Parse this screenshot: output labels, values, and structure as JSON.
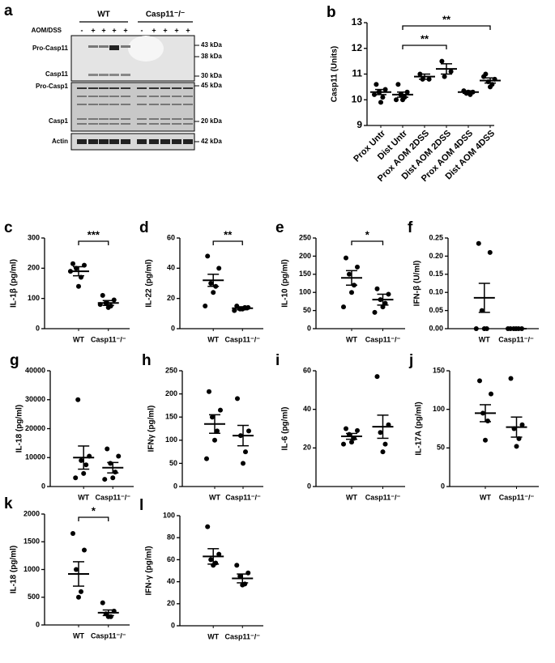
{
  "blot": {
    "panel": "a",
    "groups": [
      "WT",
      "Casp11⁻/⁻"
    ],
    "treatment": "AOM/DSS",
    "lanes": [
      "-",
      "+",
      "+",
      "+",
      "+",
      "-",
      "+",
      "+",
      "+",
      "+"
    ],
    "rows": [
      "Pro-Casp11",
      "Casp11",
      "Pro-Casp1",
      "Casp1",
      "Actin"
    ],
    "markers": [
      "43 kDa",
      "38 kDa",
      "30 kDa",
      "45 kDa",
      "20 kDa",
      "42 kDa"
    ]
  },
  "chart_data": [
    {
      "type": "dot",
      "panel": "b",
      "y_label": "Casp11 (Units)",
      "categories": [
        "Prox Untr",
        "Dist Untr",
        "Prox AOM 2DSS",
        "Dist AOM 2DSS",
        "Prox AOM 4DSS",
        "Dist AOM 4DSS"
      ],
      "points": [
        [
          10.6,
          10.4,
          10.3,
          10.1,
          9.9,
          10.2
        ],
        [
          10.6,
          10.3,
          10.2,
          10.1,
          10.0,
          10.0
        ],
        [
          11.0,
          10.8,
          10.8
        ],
        [
          11.5,
          11.1,
          10.9
        ],
        [
          10.35,
          10.3,
          10.25,
          10.2,
          10.3
        ],
        [
          11.0,
          10.8,
          10.7,
          10.6,
          10.5,
          10.9
        ]
      ],
      "means": [
        10.3,
        10.2,
        10.9,
        11.2,
        10.3,
        10.75
      ],
      "sems": [
        0.1,
        0.1,
        0.1,
        0.2,
        0.05,
        0.1
      ],
      "ylim": [
        9,
        13
      ],
      "yticks": [
        9,
        10,
        11,
        12,
        13
      ],
      "significance": [
        {
          "groups": [
            1,
            3
          ],
          "label": "**"
        },
        {
          "groups": [
            1,
            5
          ],
          "label": "**"
        }
      ]
    },
    {
      "type": "dot",
      "panel": "c",
      "y_label": "IL-1β (pg/ml)",
      "categories": [
        "WT",
        "Casp11⁻/⁻"
      ],
      "points": [
        [
          215,
          210,
          200,
          170,
          140,
          190
        ],
        [
          110,
          95,
          85,
          75,
          70,
          80
        ]
      ],
      "means": [
        190,
        85
      ],
      "sems": [
        15,
        8
      ],
      "ylim": [
        0,
        300
      ],
      "yticks": [
        0,
        100,
        200,
        300
      ],
      "significance": [
        {
          "groups": [
            0,
            1
          ],
          "label": "***"
        }
      ]
    },
    {
      "type": "dot",
      "panel": "d",
      "y_label": "IL-22 (pg/ml)",
      "categories": [
        "WT",
        "Casp11⁻/⁻"
      ],
      "points": [
        [
          48,
          40,
          30,
          28,
          24,
          15
        ],
        [
          15,
          14,
          13,
          14,
          13,
          12
        ]
      ],
      "means": [
        32,
        13.5
      ],
      "sems": [
        4,
        1
      ],
      "ylim": [
        0,
        60
      ],
      "yticks": [
        0,
        20,
        40,
        60
      ],
      "significance": [
        {
          "groups": [
            0,
            1
          ],
          "label": "**"
        }
      ]
    },
    {
      "type": "dot",
      "panel": "e",
      "y_label": "IL-10 (pg/ml)",
      "categories": [
        "WT",
        "Casp11⁻/⁻"
      ],
      "points": [
        [
          195,
          170,
          150,
          120,
          100,
          60
        ],
        [
          110,
          95,
          80,
          70,
          60,
          45
        ]
      ],
      "means": [
        140,
        80
      ],
      "sems": [
        20,
        15
      ],
      "ylim": [
        0,
        250
      ],
      "yticks": [
        0,
        50,
        100,
        150,
        200,
        250
      ],
      "significance": [
        {
          "groups": [
            0,
            1
          ],
          "label": "*"
        }
      ]
    },
    {
      "type": "dot",
      "panel": "f",
      "y_label": "IFN-β (U/ml)",
      "categories": [
        "WT",
        "Casp11⁻/⁻"
      ],
      "points": [
        [
          0.235,
          0.21,
          0.05,
          0,
          0,
          0
        ],
        [
          0,
          0,
          0,
          0,
          0,
          0
        ]
      ],
      "means": [
        0.085,
        0
      ],
      "sems": [
        0.04,
        0
      ],
      "ylim": [
        0,
        0.25
      ],
      "yticks": [
        {
          "value": 0,
          "label": "0.00"
        },
        {
          "value": 0.05,
          "label": "0.05"
        },
        {
          "value": 0.1,
          "label": "0.10"
        },
        {
          "value": 0.15,
          "label": "0.15"
        },
        {
          "value": 0.2,
          "label": "0.20"
        },
        {
          "value": 0.25,
          "label": "0.25"
        }
      ]
    },
    {
      "type": "dot",
      "panel": "g",
      "y_label": "IL-18 (pg/ml)",
      "categories": [
        "WT",
        "Casp11⁻/⁻"
      ],
      "points": [
        [
          30000,
          10500,
          9000,
          7500,
          4500,
          3000
        ],
        [
          13000,
          10500,
          8000,
          5000,
          3000,
          2500
        ]
      ],
      "means": [
        10000,
        6500
      ],
      "sems": [
        4000,
        1800
      ],
      "ylim": [
        0,
        40000
      ],
      "yticks": [
        0,
        10000,
        20000,
        30000,
        40000
      ]
    },
    {
      "type": "dot",
      "panel": "h",
      "y_label": "IFNγ (pg/ml)",
      "categories": [
        "WT",
        "Casp11⁻/⁻"
      ],
      "points": [
        [
          205,
          165,
          150,
          120,
          100,
          60
        ],
        [
          190,
          120,
          110,
          75,
          50
        ]
      ],
      "means": [
        135,
        110
      ],
      "sems": [
        20,
        22
      ],
      "ylim": [
        0,
        250
      ],
      "yticks": [
        0,
        50,
        100,
        150,
        200,
        250
      ]
    },
    {
      "type": "dot",
      "panel": "i",
      "y_label": "IL-6 (pg/ml)",
      "categories": [
        "WT",
        "Casp11⁻/⁻"
      ],
      "points": [
        [
          30,
          29,
          27,
          25,
          23,
          22
        ],
        [
          57,
          32,
          28,
          22,
          18
        ]
      ],
      "means": [
        26,
        31
      ],
      "sems": [
        1.5,
        6
      ],
      "ylim": [
        0,
        60
      ],
      "yticks": [
        0,
        20,
        40,
        60
      ]
    },
    {
      "type": "dot",
      "panel": "j",
      "y_label": "IL-17A (pg/ml)",
      "categories": [
        "WT",
        "Casp11⁻/⁻"
      ],
      "points": [
        [
          137,
          120,
          95,
          85,
          60
        ],
        [
          140,
          80,
          75,
          62,
          52
        ]
      ],
      "means": [
        95,
        77
      ],
      "sems": [
        11,
        13
      ],
      "ylim": [
        0,
        150
      ],
      "yticks": [
        0,
        50,
        100,
        150
      ]
    },
    {
      "type": "dot",
      "panel": "k",
      "y_label": "IL-18 (pg/ml)",
      "categories": [
        "WT",
        "Casp11⁻/⁻"
      ],
      "points": [
        [
          1650,
          1350,
          1000,
          600,
          500
        ],
        [
          400,
          250,
          200,
          150,
          150
        ]
      ],
      "means": [
        920,
        220
      ],
      "sems": [
        220,
        50
      ],
      "ylim": [
        0,
        2000
      ],
      "yticks": [
        0,
        500,
        1000,
        1500,
        2000
      ],
      "significance": [
        {
          "groups": [
            0,
            1
          ],
          "label": "*"
        }
      ]
    },
    {
      "type": "dot",
      "panel": "l",
      "y_label": "IFN-γ (pg/ml)",
      "categories": [
        "WT",
        "Casp11⁻/⁻"
      ],
      "points": [
        [
          90,
          65,
          60,
          57,
          55
        ],
        [
          55,
          48,
          45,
          38,
          37
        ]
      ],
      "means": [
        63,
        43
      ],
      "sems": [
        7,
        4
      ],
      "ylim": [
        0,
        100
      ],
      "yticks": [
        0,
        20,
        40,
        60,
        80,
        100
      ]
    }
  ]
}
